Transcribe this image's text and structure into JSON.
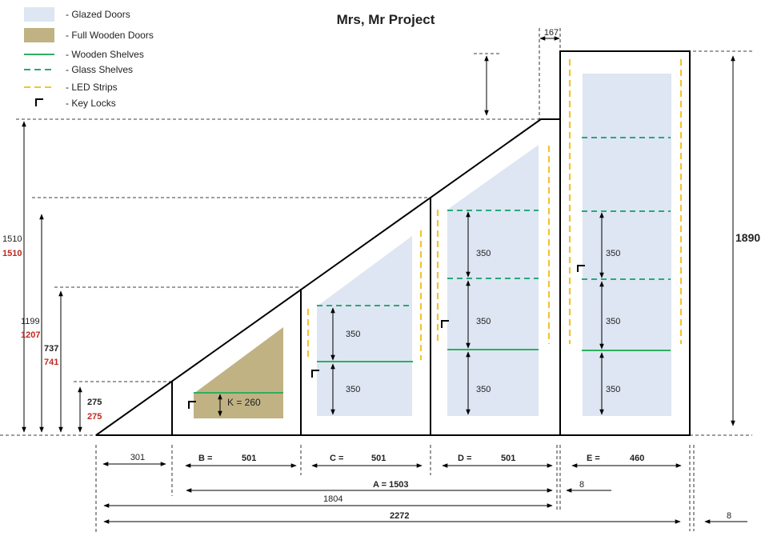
{
  "title": "Mrs, Mr Project",
  "colors": {
    "glazed": "#dde6f2",
    "wooden": "#c0b283",
    "wooden_shelf": "#2eaf5e",
    "glass_shelf": "#2aa87a",
    "led": "#f2c433",
    "line": "#000000",
    "red_text": "#c0281f"
  },
  "legend": [
    {
      "key": "glazed",
      "label": "- Glazed Doors",
      "icon": "glazed-swatch"
    },
    {
      "key": "wooden",
      "label": "- Full Wooden Doors",
      "icon": "wooden-swatch"
    },
    {
      "key": "wooden_shelf",
      "label": "- Wooden Shelves",
      "icon": "solid-green-line"
    },
    {
      "key": "glass_shelf",
      "label": "- Glass Shelves",
      "icon": "dashed-green-line"
    },
    {
      "key": "led",
      "label": "- LED Strips",
      "icon": "dashed-yellow-line"
    },
    {
      "key": "lock",
      "label": "- Key Locks",
      "icon": "key-lock-icon"
    }
  ],
  "heights": {
    "h1510": "1510",
    "h1510_red": "1510",
    "h1199": "1199",
    "h1207_red": "1207",
    "h737": "737",
    "h741_red": "741",
    "h275": "275",
    "h275_red": "275",
    "h1890": "1890",
    "top167": "167"
  },
  "shelf_spacing": {
    "k": "K = 260",
    "c_upper": "350",
    "c_lower": "350",
    "d_top": "350",
    "d_mid": "350",
    "d_bot": "350",
    "e_top": "350",
    "e_mid": "350",
    "e_bot": "350"
  },
  "widths": {
    "w301": "301",
    "b_label": "B =",
    "b_value": "501",
    "c_label": "C =",
    "c_value": "501",
    "d_label": "D =",
    "d_value": "501",
    "e_label": "E =",
    "e_value": "460",
    "a_total": "A =  1503",
    "gap8_a": "8",
    "w1804": "1804",
    "w2272": "2272",
    "gap8_b": "8"
  }
}
